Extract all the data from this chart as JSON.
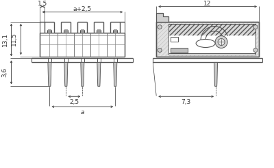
{
  "bg_color": "#ffffff",
  "lc": "#555555",
  "dc": "#444444",
  "gray1": "#aaaaaa",
  "gray2": "#cccccc",
  "gray3": "#e0e0e0",
  "fig_width": 4.0,
  "fig_height": 2.46,
  "dpi": 100,
  "n_pins": 5,
  "labels": {
    "dim_15": "1,5",
    "dim_a25": "a+2,5",
    "dim_131": "13,1",
    "dim_115": "11,5",
    "dim_36": "3,6",
    "dim_25": "2,5",
    "dim_a": "a",
    "dim_12": "12",
    "dim_73": "7,3"
  }
}
